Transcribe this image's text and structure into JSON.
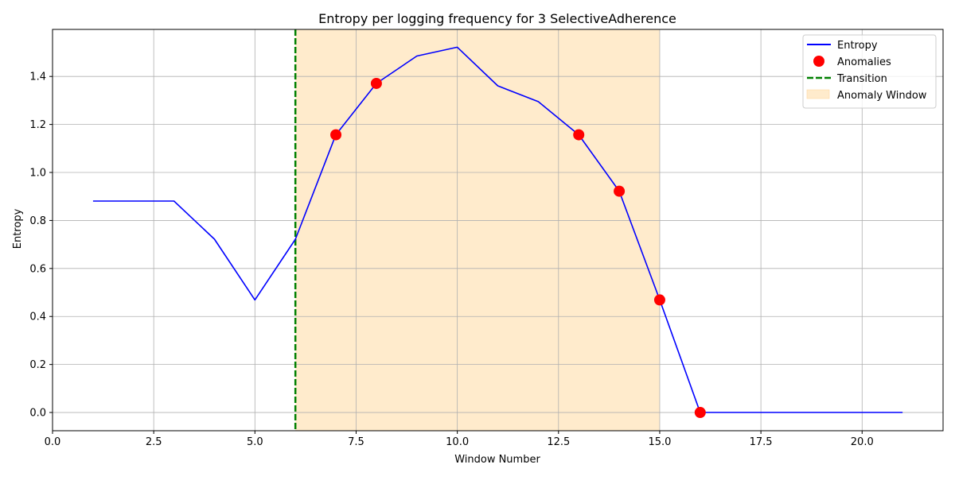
{
  "chart_data": {
    "type": "line",
    "title": "Entropy per logging frequency for 3 SelectiveAdherence",
    "xlabel": "Window Number",
    "ylabel": "Entropy",
    "xlim": [
      0,
      22.0
    ],
    "ylim": [
      -0.076,
      1.596
    ],
    "xticks": [
      0.0,
      2.5,
      5.0,
      7.5,
      10.0,
      12.5,
      15.0,
      17.5,
      20.0
    ],
    "xtick_labels": [
      "0.0",
      "2.5",
      "5.0",
      "7.5",
      "10.0",
      "12.5",
      "15.0",
      "17.5",
      "20.0"
    ],
    "yticks": [
      0.0,
      0.2,
      0.4,
      0.6,
      0.8,
      1.0,
      1.2,
      1.4
    ],
    "ytick_labels": [
      "0.0",
      "0.2",
      "0.4",
      "0.6",
      "0.8",
      "1.0",
      "1.2",
      "1.4"
    ],
    "grid": true,
    "legend_position": "top-right",
    "series": [
      {
        "name": "Entropy",
        "kind": "line",
        "color": "#0000ff",
        "x": [
          1,
          2,
          3,
          4,
          5,
          6,
          7,
          8,
          9,
          10,
          11,
          12,
          13,
          14,
          15,
          16,
          17,
          18,
          19,
          20,
          21
        ],
        "y": [
          0.881,
          0.881,
          0.881,
          0.722,
          0.469,
          0.722,
          1.157,
          1.371,
          1.485,
          1.522,
          1.361,
          1.295,
          1.157,
          0.922,
          0.469,
          0.0,
          0.0,
          0.0,
          0.0,
          0.0,
          0.0
        ]
      },
      {
        "name": "Anomalies",
        "kind": "scatter",
        "color": "#ff0000",
        "x": [
          7,
          8,
          13,
          14,
          15,
          16
        ],
        "y": [
          1.157,
          1.371,
          1.157,
          0.922,
          0.469,
          0.0
        ]
      }
    ],
    "transition": {
      "name": "Transition",
      "x": 6,
      "color": "#008000"
    },
    "anomaly_window": {
      "name": "Anomaly Window",
      "x_start": 6,
      "x_end": 15,
      "color": "#ffebcc"
    }
  }
}
